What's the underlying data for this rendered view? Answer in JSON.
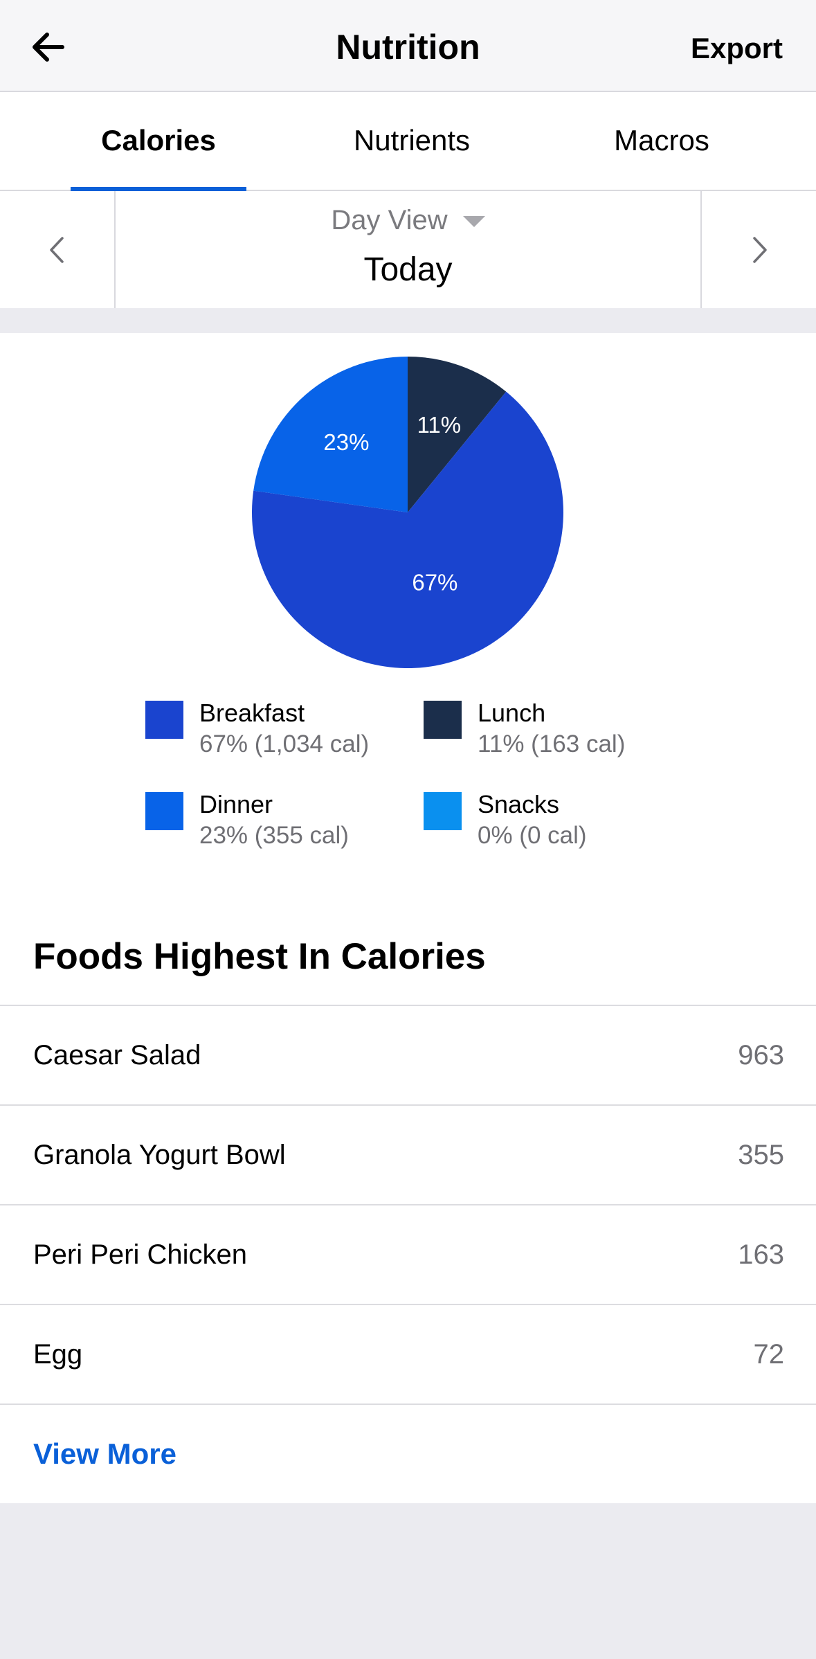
{
  "header": {
    "back_icon": "arrow-left-icon",
    "title": "Nutrition",
    "export_label": "Export"
  },
  "tabs": [
    {
      "label": "Calories",
      "active": true
    },
    {
      "label": "Nutrients",
      "active": false
    },
    {
      "label": "Macros",
      "active": false
    }
  ],
  "date_nav": {
    "prev_icon": "chevron-left-icon",
    "next_icon": "chevron-right-icon",
    "view_label": "Day View",
    "caret_icon": "caret-down-icon",
    "date_label": "Today"
  },
  "chart_data": {
    "type": "pie",
    "slices": [
      {
        "label": "Lunch",
        "percent": 11,
        "display": "11%",
        "color": "#1b2e4b"
      },
      {
        "label": "Breakfast",
        "percent": 67,
        "display": "67%",
        "color": "#1a44cf"
      },
      {
        "label": "Dinner",
        "percent": 23,
        "display": "23%",
        "color": "#0863e8"
      },
      {
        "label": "Snacks",
        "percent": 0,
        "display": "",
        "color": "#0a90ef"
      }
    ]
  },
  "legend": [
    {
      "name": "Breakfast",
      "detail": "67% (1,034 cal)",
      "color": "#1a44cf"
    },
    {
      "name": "Lunch",
      "detail": "11% (163 cal)",
      "color": "#1b2e4b"
    },
    {
      "name": "Dinner",
      "detail": "23% (355 cal)",
      "color": "#0863e8"
    },
    {
      "name": "Snacks",
      "detail": "0% (0 cal)",
      "color": "#0a90ef"
    }
  ],
  "foods": {
    "title": "Foods Highest In Calories",
    "items": [
      {
        "name": "Caesar Salad",
        "value": "963"
      },
      {
        "name": "Granola Yogurt Bowl",
        "value": "355"
      },
      {
        "name": "Peri Peri Chicken",
        "value": "163"
      },
      {
        "name": "Egg",
        "value": "72"
      }
    ],
    "view_more_label": "View More"
  },
  "colors": {
    "accent": "#0a60d8"
  }
}
